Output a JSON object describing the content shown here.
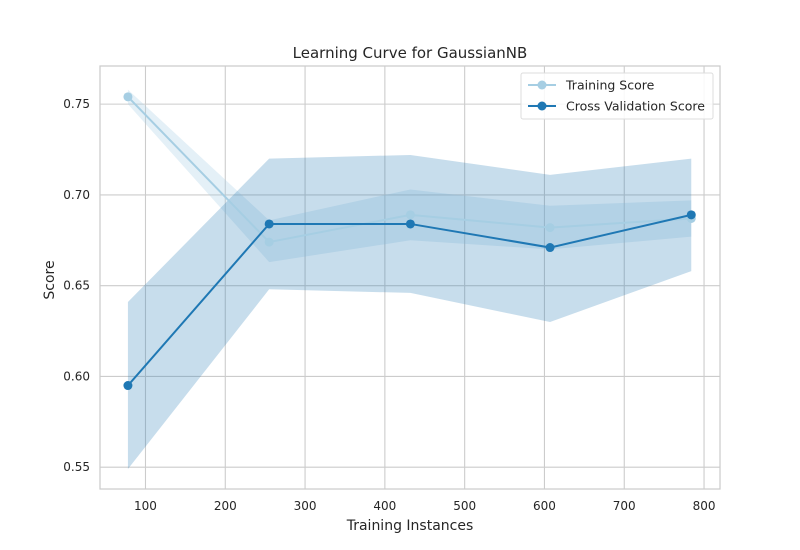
{
  "chart_data": {
    "type": "line",
    "title": "Learning Curve for GaussianNB",
    "xlabel": "Training Instances",
    "ylabel": "Score",
    "xlim": [
      43,
      820
    ],
    "ylim": [
      0.538,
      0.771
    ],
    "xticks": [
      100,
      200,
      300,
      400,
      500,
      600,
      700,
      800
    ],
    "yticks": [
      0.55,
      0.6,
      0.65,
      0.7,
      0.75
    ],
    "xtick_labels": [
      "100",
      "200",
      "300",
      "400",
      "500",
      "600",
      "700",
      "800"
    ],
    "ytick_labels": [
      "0.55",
      "0.60",
      "0.65",
      "0.70",
      "0.75"
    ],
    "grid": true,
    "legend_position": "top-right",
    "x": [
      78,
      255,
      432,
      607,
      784
    ],
    "series": [
      {
        "name": "Training Score",
        "color": "#a6cee3",
        "values": [
          0.754,
          0.674,
          0.689,
          0.682,
          0.687
        ],
        "band_upper": [
          0.758,
          0.686,
          0.703,
          0.694,
          0.697
        ],
        "band_lower": [
          0.75,
          0.663,
          0.675,
          0.67,
          0.677
        ]
      },
      {
        "name": "Cross Validation Score",
        "color": "#1f78b4",
        "values": [
          0.595,
          0.684,
          0.684,
          0.671,
          0.689
        ],
        "band_upper": [
          0.641,
          0.72,
          0.722,
          0.711,
          0.72
        ],
        "band_lower": [
          0.549,
          0.648,
          0.646,
          0.63,
          0.658
        ]
      }
    ]
  }
}
